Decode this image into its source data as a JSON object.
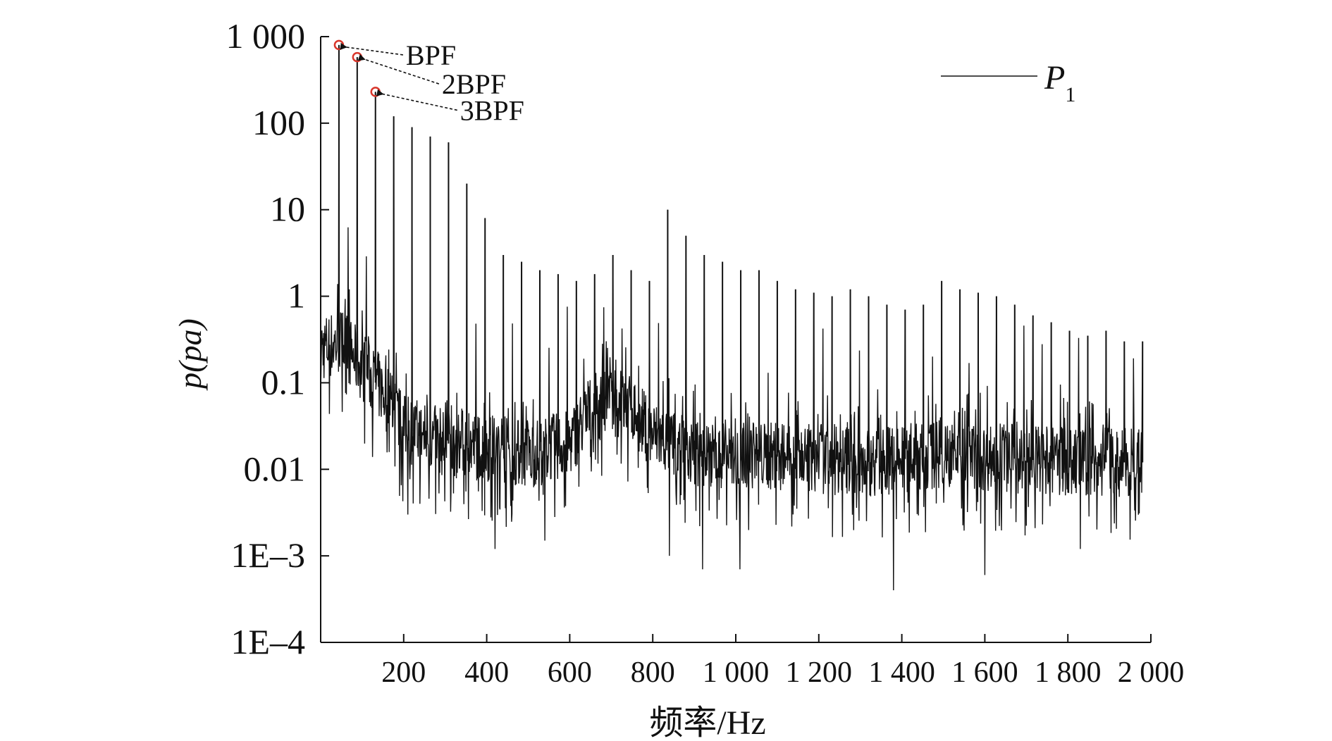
{
  "chart_data": {
    "type": "line",
    "title": "",
    "xlabel": "频率/Hz",
    "ylabel_main": "p",
    "ylabel_unit": "(pa)",
    "y_scale": "log",
    "xlim": [
      0,
      2000
    ],
    "ylim": [
      0.0001,
      1000
    ],
    "x_ticks": [
      200,
      400,
      600,
      800,
      1000,
      1200,
      1400,
      1600,
      1800,
      2000
    ],
    "x_tick_labels": [
      "200",
      "400",
      "600",
      "800",
      "1 000",
      "1 200",
      "1 400",
      "1 600",
      "1 800",
      "2 000"
    ],
    "y_ticks": [
      0.0001,
      0.001,
      0.01,
      0.1,
      1,
      10,
      100,
      1000
    ],
    "y_tick_labels": [
      "1E–4",
      "1E–3",
      "0.01",
      "0.1",
      "1",
      "10",
      "100",
      "1 000"
    ],
    "legend": {
      "position": "top-right",
      "label_main": "P",
      "label_sub": "1"
    },
    "series": [
      {
        "name": "P1",
        "color": "#111111",
        "bpf_hz": 44,
        "harmonic_peaks": [
          {
            "x": 44,
            "y": 800
          },
          {
            "x": 88,
            "y": 580
          },
          {
            "x": 132,
            "y": 230
          },
          {
            "x": 176,
            "y": 120
          },
          {
            "x": 220,
            "y": 90
          },
          {
            "x": 264,
            "y": 70
          },
          {
            "x": 308,
            "y": 60
          },
          {
            "x": 352,
            "y": 20
          },
          {
            "x": 396,
            "y": 8
          },
          {
            "x": 440,
            "y": 3
          },
          {
            "x": 484,
            "y": 2.5
          },
          {
            "x": 528,
            "y": 2
          },
          {
            "x": 572,
            "y": 1.8
          },
          {
            "x": 616,
            "y": 1.5
          },
          {
            "x": 660,
            "y": 1.8
          },
          {
            "x": 704,
            "y": 3
          },
          {
            "x": 748,
            "y": 2
          },
          {
            "x": 792,
            "y": 1.5
          },
          {
            "x": 836,
            "y": 10
          },
          {
            "x": 880,
            "y": 5
          },
          {
            "x": 924,
            "y": 3
          },
          {
            "x": 968,
            "y": 2.5
          },
          {
            "x": 1012,
            "y": 2
          },
          {
            "x": 1056,
            "y": 2
          },
          {
            "x": 1100,
            "y": 1.5
          },
          {
            "x": 1144,
            "y": 1.2
          },
          {
            "x": 1188,
            "y": 1.1
          },
          {
            "x": 1232,
            "y": 1
          },
          {
            "x": 1276,
            "y": 1.2
          },
          {
            "x": 1320,
            "y": 1
          },
          {
            "x": 1364,
            "y": 0.8
          },
          {
            "x": 1408,
            "y": 0.7
          },
          {
            "x": 1452,
            "y": 0.8
          },
          {
            "x": 1496,
            "y": 1.5
          },
          {
            "x": 1540,
            "y": 1.2
          },
          {
            "x": 1584,
            "y": 1.1
          },
          {
            "x": 1628,
            "y": 1
          },
          {
            "x": 1672,
            "y": 0.8
          },
          {
            "x": 1716,
            "y": 0.6
          },
          {
            "x": 1760,
            "y": 0.5
          },
          {
            "x": 1804,
            "y": 0.4
          },
          {
            "x": 1848,
            "y": 0.35
          },
          {
            "x": 1892,
            "y": 0.4
          },
          {
            "x": 1936,
            "y": 0.3
          },
          {
            "x": 1980,
            "y": 0.3
          }
        ],
        "broadband_floor": [
          {
            "x": 0,
            "y": 0.25
          },
          {
            "x": 50,
            "y": 0.3
          },
          {
            "x": 100,
            "y": 0.15
          },
          {
            "x": 150,
            "y": 0.08
          },
          {
            "x": 200,
            "y": 0.03
          },
          {
            "x": 300,
            "y": 0.02
          },
          {
            "x": 400,
            "y": 0.018
          },
          {
            "x": 500,
            "y": 0.015
          },
          {
            "x": 600,
            "y": 0.02
          },
          {
            "x": 650,
            "y": 0.05
          },
          {
            "x": 700,
            "y": 0.06
          },
          {
            "x": 750,
            "y": 0.05
          },
          {
            "x": 800,
            "y": 0.025
          },
          {
            "x": 900,
            "y": 0.015
          },
          {
            "x": 1000,
            "y": 0.015
          },
          {
            "x": 1100,
            "y": 0.014
          },
          {
            "x": 1200,
            "y": 0.013
          },
          {
            "x": 1300,
            "y": 0.012
          },
          {
            "x": 1400,
            "y": 0.013
          },
          {
            "x": 1500,
            "y": 0.015
          },
          {
            "x": 1600,
            "y": 0.014
          },
          {
            "x": 1700,
            "y": 0.013
          },
          {
            "x": 1800,
            "y": 0.012
          },
          {
            "x": 1900,
            "y": 0.012
          },
          {
            "x": 1980,
            "y": 0.012
          }
        ],
        "deep_dips": [
          {
            "x": 210,
            "y": 0.003
          },
          {
            "x": 420,
            "y": 0.0012
          },
          {
            "x": 540,
            "y": 0.0015
          },
          {
            "x": 840,
            "y": 0.001
          },
          {
            "x": 920,
            "y": 0.0007
          },
          {
            "x": 1010,
            "y": 0.0007
          },
          {
            "x": 1380,
            "y": 0.0004
          },
          {
            "x": 1600,
            "y": 0.0006
          },
          {
            "x": 1830,
            "y": 0.0012
          }
        ]
      }
    ],
    "annotations": [
      {
        "text": "BPF",
        "x": 44,
        "y": 800
      },
      {
        "text": "2BPF",
        "x": 88,
        "y": 580
      },
      {
        "text": "3BPF",
        "x": 132,
        "y": 230
      }
    ]
  }
}
